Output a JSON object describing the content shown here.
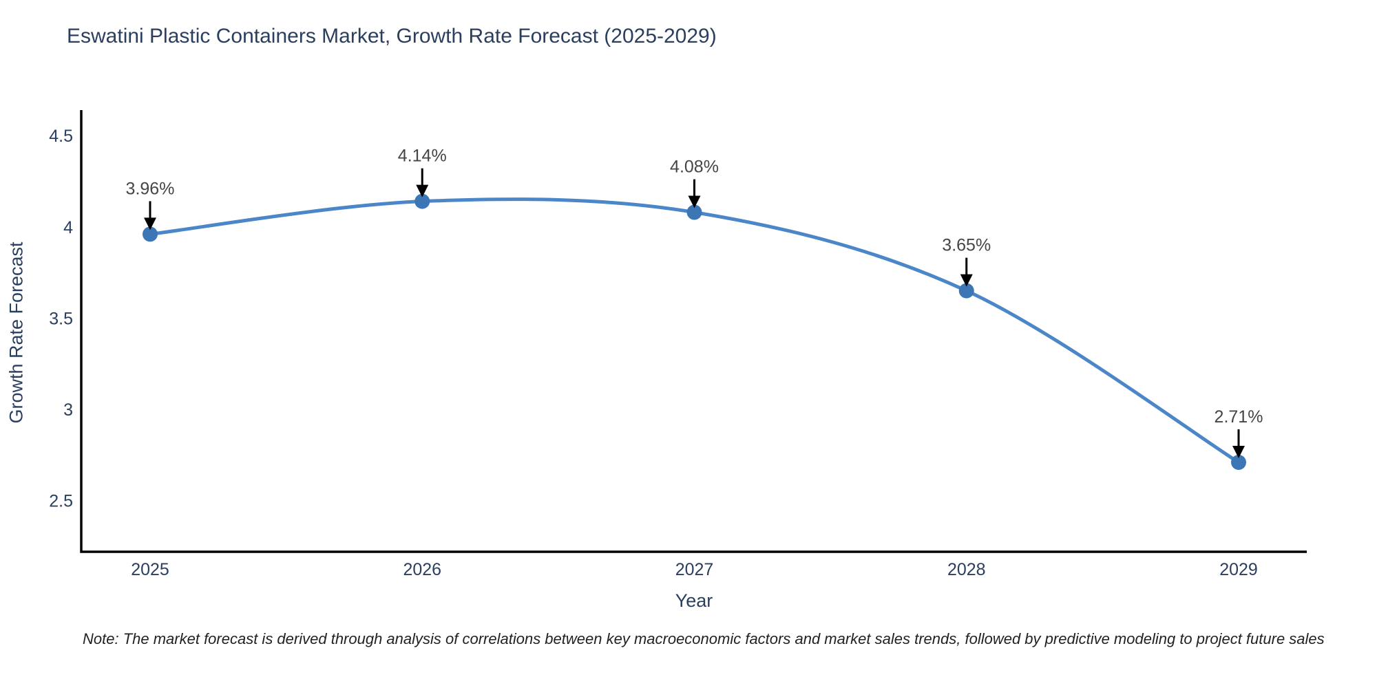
{
  "title": "Eswatini Plastic Containers Market, Growth Rate Forecast (2025-2029)",
  "note": "Note: The market forecast is derived through analysis of correlations between key macroeconomic factors and market sales trends, followed by predictive modeling to project future sales",
  "chart_data": {
    "type": "line",
    "title": "Eswatini Plastic Containers Market, Growth Rate Forecast (2025-2029)",
    "xlabel": "Year",
    "ylabel": "Growth Rate Forecast",
    "x": [
      2025,
      2026,
      2027,
      2028,
      2029
    ],
    "y": [
      3.96,
      4.14,
      4.08,
      3.65,
      2.71
    ],
    "point_labels": [
      "3.96%",
      "4.14%",
      "4.08%",
      "3.65%",
      "2.71%"
    ],
    "xticks": [
      "2025",
      "2026",
      "2027",
      "2028",
      "2029"
    ],
    "yticks": [
      "2.5",
      "3",
      "3.5",
      "4",
      "4.5"
    ],
    "ytick_values": [
      2.5,
      3,
      3.5,
      4,
      4.5
    ],
    "ylim": [
      2.22,
      4.64
    ],
    "grid": false,
    "legend_position": "none",
    "line_color": "#4a86c8",
    "marker_color": "#3c76b4",
    "annotation_arrow_color": "#000000",
    "axis_color": "#000000",
    "text_color": "#2a3f5f",
    "background_color": "#ffffff"
  }
}
